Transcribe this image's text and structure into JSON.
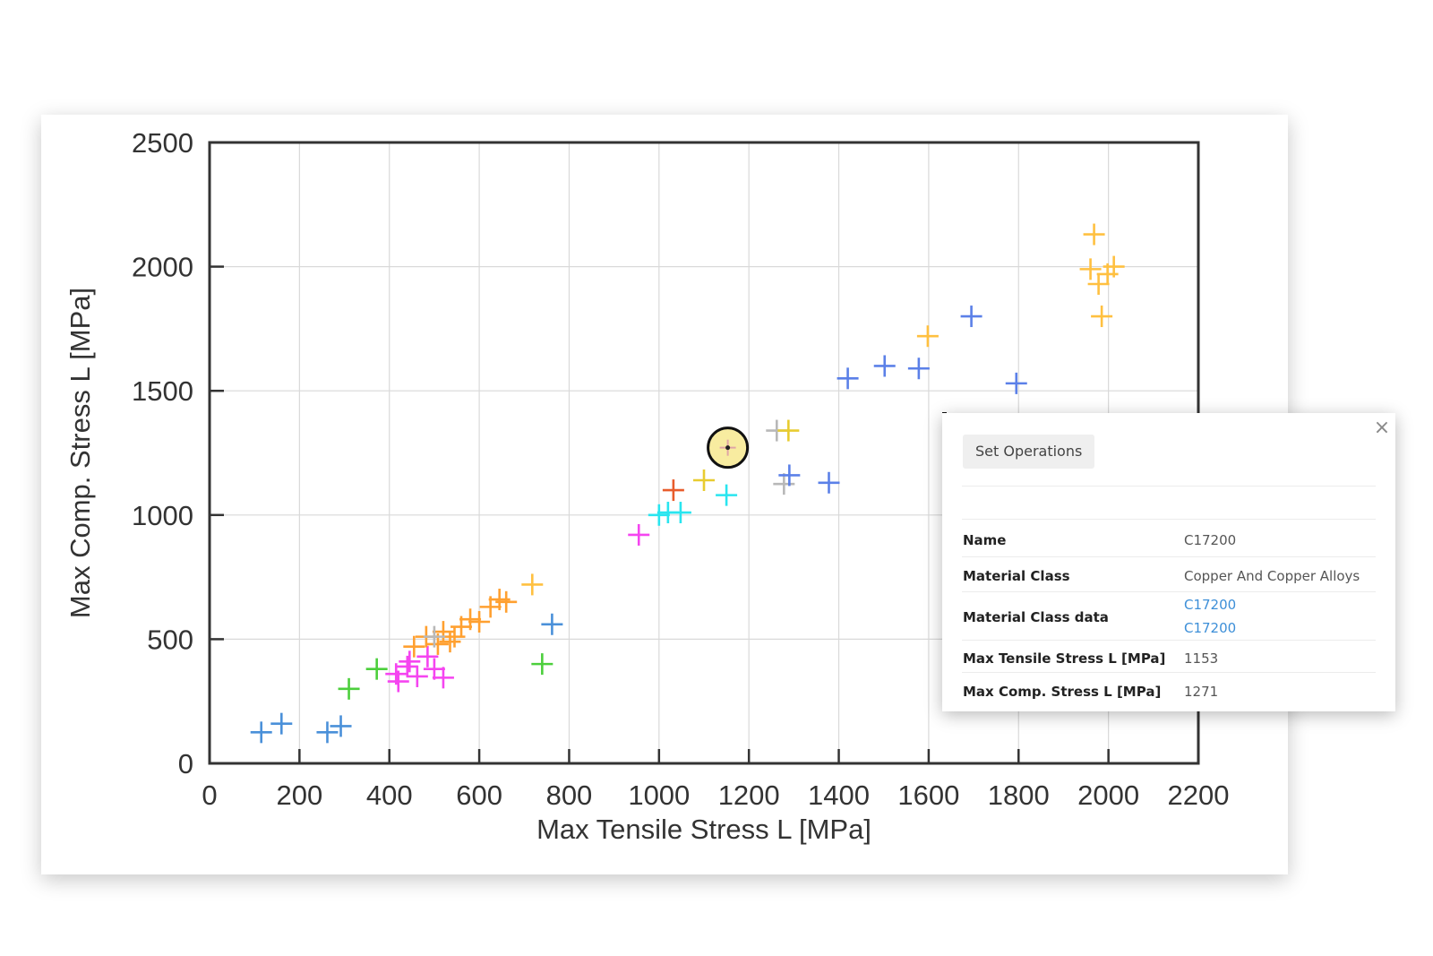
{
  "chart_data": {
    "type": "scatter",
    "xlabel": "Max Tensile Stress L [MPa]",
    "ylabel": "Max Comp. Stress L [MPa]",
    "xlim": [
      0,
      2200
    ],
    "ylim": [
      0,
      2500
    ],
    "xticks": [
      0,
      200,
      400,
      600,
      800,
      1000,
      1200,
      1400,
      1600,
      1800,
      2000,
      2200
    ],
    "yticks": [
      0,
      500,
      1000,
      1500,
      2000,
      2500
    ],
    "grid": true,
    "marker": "plus",
    "series": [
      {
        "color": "#4a90d9",
        "points": [
          [
            115,
            125
          ],
          [
            160,
            160
          ],
          [
            262,
            125
          ],
          [
            292,
            150
          ],
          [
            762,
            560
          ]
        ]
      },
      {
        "color": "#4ccf3c",
        "points": [
          [
            372,
            380
          ],
          [
            310,
            300
          ],
          [
            740,
            400
          ]
        ]
      },
      {
        "color": "#f545f0",
        "points": [
          [
            420,
            330
          ],
          [
            445,
            410
          ],
          [
            462,
            350
          ],
          [
            485,
            430
          ],
          [
            520,
            345
          ],
          [
            415,
            360
          ],
          [
            440,
            390
          ],
          [
            500,
            380
          ],
          [
            955,
            920
          ]
        ]
      },
      {
        "color": "#ffa030",
        "points": [
          [
            455,
            470
          ],
          [
            482,
            510
          ],
          [
            508,
            480
          ],
          [
            520,
            530
          ],
          [
            545,
            510
          ],
          [
            560,
            550
          ],
          [
            580,
            580
          ],
          [
            600,
            570
          ],
          [
            625,
            630
          ],
          [
            645,
            660
          ],
          [
            660,
            650
          ],
          [
            535,
            490
          ]
        ]
      },
      {
        "color": "#b8b8b8",
        "points": [
          [
            500,
            510
          ],
          [
            1262,
            1340
          ],
          [
            1278,
            1125
          ]
        ]
      },
      {
        "color": "#29e5ef",
        "points": [
          [
            1000,
            1000
          ],
          [
            1020,
            1010
          ],
          [
            1048,
            1010
          ],
          [
            1150,
            1080
          ]
        ]
      },
      {
        "color": "#e85c2c",
        "points": [
          [
            1032,
            1100
          ]
        ]
      },
      {
        "color": "#e8cc30",
        "points": [
          [
            1100,
            1140
          ],
          [
            1288,
            1340
          ]
        ]
      },
      {
        "color": "#5b80e8",
        "points": [
          [
            1290,
            1160
          ],
          [
            1378,
            1130
          ],
          [
            1420,
            1550
          ],
          [
            1502,
            1600
          ],
          [
            1578,
            1590
          ],
          [
            1695,
            1800
          ],
          [
            1795,
            1530
          ]
        ]
      },
      {
        "color": "#ffc040",
        "points": [
          [
            718,
            720
          ],
          [
            1598,
            1720
          ],
          [
            1968,
            2130
          ],
          [
            1960,
            1990
          ],
          [
            1978,
            1930
          ],
          [
            1998,
            1970
          ],
          [
            2012,
            2000
          ],
          [
            1985,
            1800
          ]
        ]
      }
    ],
    "highlight": {
      "x": 1153,
      "y": 1271
    }
  },
  "popup": {
    "set_operations_label": "Set Operations",
    "close_label": "×",
    "name_key": "Name",
    "name_value": "C17200",
    "class_key": "Material Class",
    "class_value": "Copper And Copper Alloys",
    "class_data_key": "Material Class data",
    "class_data_values": [
      "C17200",
      "C17200"
    ],
    "tensile_key": "Max Tensile Stress L [MPa]",
    "tensile_value": "1153",
    "comp_key": "Max Comp. Stress L [MPa]",
    "comp_value": "1271"
  }
}
